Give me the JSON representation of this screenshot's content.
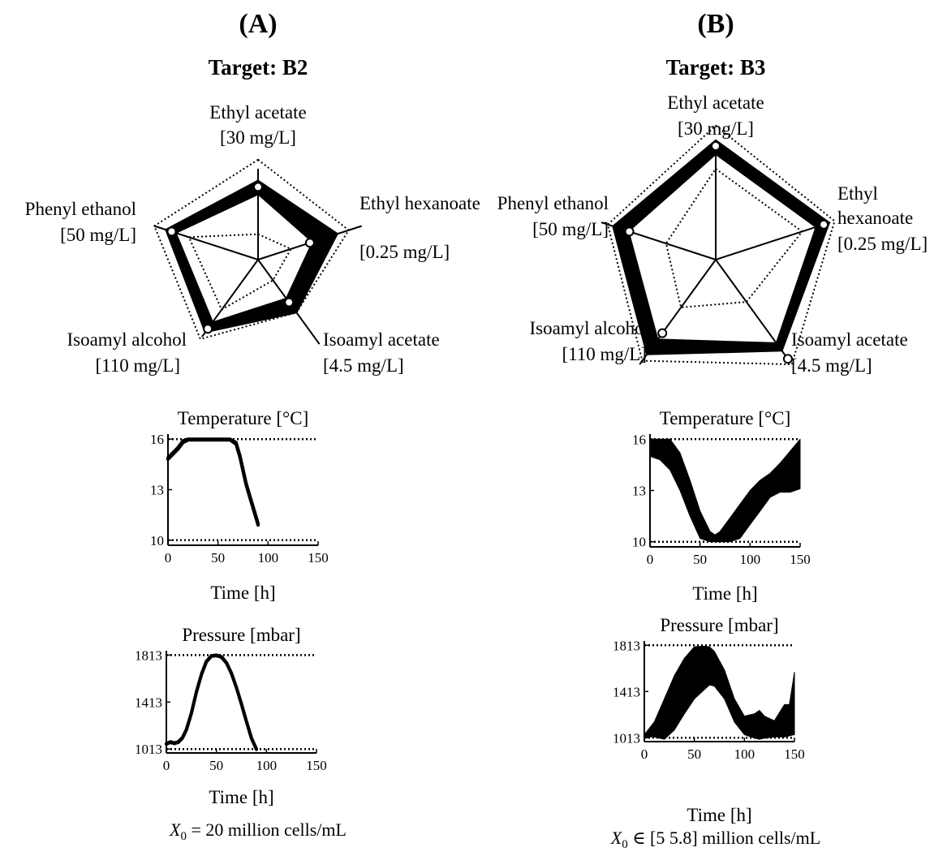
{
  "panels": [
    {
      "label": "(A)",
      "title": "Target: B2",
      "footer": {
        "symbol": "X",
        "subscript": "0",
        "text": " = 20 million cells/mL"
      }
    },
    {
      "label": "(B)",
      "title": "Target: B3",
      "footer": {
        "symbol": "X",
        "subscript": "0",
        "text": " ∈ [5   5.8] million cells/mL"
      }
    }
  ],
  "chart_data": [
    {
      "type": "radar",
      "panel": "A",
      "axes": [
        {
          "name": "Ethyl acetate",
          "unit": "[30 mg/L]"
        },
        {
          "name": "Ethyl hexanoate",
          "unit": "[0.25 mg/L]"
        },
        {
          "name": "Isoamyl acetate",
          "unit": "[4.5 mg/L]"
        },
        {
          "name": "Isoamyl alcohol",
          "unit": "[110 mg/L]"
        },
        {
          "name": "Phenyl ethanol",
          "unit": "[50 mg/L]"
        }
      ],
      "band_low": [
        0.71,
        0.62,
        0.52,
        0.84,
        0.94
      ],
      "band_high": [
        0.88,
        0.93,
        0.73,
        1.0,
        1.08
      ],
      "target": [
        0.8,
        0.6,
        0.58,
        0.94,
        1.0
      ],
      "dotted_inner": [
        0.28,
        0.38,
        0.28,
        0.68,
        0.8
      ],
      "dotted_outer": [
        1.1,
        1.05,
        0.72,
        1.08,
        1.2
      ]
    },
    {
      "type": "line",
      "panel": "A",
      "title": "Temperature [°C]",
      "xlabel": "Time [h]",
      "xticks": [
        0,
        50,
        100,
        150
      ],
      "yticks": [
        10,
        13,
        16
      ],
      "xlim": [
        0,
        150
      ],
      "ylim": [
        9.7,
        16.3
      ],
      "bounds": [
        10,
        16
      ],
      "x": [
        0,
        5,
        10,
        15,
        20,
        25,
        35,
        45,
        55,
        62,
        68,
        72,
        75,
        78,
        82,
        86,
        90
      ],
      "upper": [
        14.9,
        15.2,
        15.5,
        15.9,
        16,
        16,
        16,
        16,
        16,
        16,
        15.8,
        15,
        14.2,
        13.4,
        12.6,
        11.8,
        11
      ],
      "lower": [
        14.8,
        15.1,
        15.4,
        15.8,
        15.95,
        15.95,
        15.95,
        15.95,
        15.95,
        15.95,
        15.7,
        14.9,
        14.1,
        13.3,
        12.5,
        11.7,
        10.9
      ]
    },
    {
      "type": "line",
      "panel": "A",
      "title": "Pressure [mbar]",
      "xlabel": "Time [h]",
      "xticks": [
        0,
        50,
        100,
        150
      ],
      "yticks": [
        1013,
        1413,
        1813
      ],
      "xlim": [
        0,
        150
      ],
      "ylim": [
        980,
        1850
      ],
      "bounds": [
        1013,
        1813
      ],
      "x": [
        0,
        4,
        8,
        12,
        16,
        20,
        25,
        30,
        35,
        40,
        45,
        50,
        55,
        60,
        65,
        70,
        75,
        80,
        85,
        90
      ],
      "upper": [
        1060,
        1075,
        1065,
        1075,
        1110,
        1180,
        1320,
        1500,
        1650,
        1760,
        1808,
        1813,
        1800,
        1750,
        1660,
        1540,
        1400,
        1250,
        1110,
        1013
      ],
      "lower": [
        1055,
        1070,
        1060,
        1070,
        1105,
        1175,
        1315,
        1495,
        1645,
        1755,
        1803,
        1808,
        1795,
        1745,
        1655,
        1535,
        1395,
        1245,
        1105,
        1010
      ]
    },
    {
      "type": "radar",
      "panel": "B",
      "axes": [
        {
          "name": "Ethyl acetate",
          "unit": "[30 mg/L]"
        },
        {
          "name": "Ethyl hexanoate",
          "unit": "[0.25 mg/L]"
        },
        {
          "name": "Isoamyl acetate",
          "unit": "[4.5 mg/L]"
        },
        {
          "name": "Isoamyl alcohol",
          "unit": "[110 mg/L]"
        },
        {
          "name": "Phenyl ethanol",
          "unit": "[50 mg/L]"
        }
      ],
      "band_low": [
        0.92,
        0.92,
        0.9,
        0.86,
        0.8
      ],
      "band_high": [
        1.06,
        1.06,
        1.0,
        1.04,
        0.96
      ],
      "target": [
        1.0,
        1.0,
        1.08,
        0.8,
        0.8
      ],
      "dotted_inner": [
        0.8,
        0.8,
        0.46,
        0.52,
        0.46
      ],
      "dotted_outer": [
        1.18,
        1.1,
        1.14,
        1.1,
        1.0
      ]
    },
    {
      "type": "area",
      "panel": "B",
      "title": "Temperature [°C]",
      "xlabel": "Time [h]",
      "xticks": [
        0,
        50,
        100,
        150
      ],
      "yticks": [
        10,
        13,
        16
      ],
      "xlim": [
        0,
        150
      ],
      "ylim": [
        9.7,
        16.3
      ],
      "bounds": [
        10,
        16
      ],
      "x": [
        0,
        10,
        20,
        30,
        40,
        50,
        60,
        65,
        70,
        80,
        90,
        100,
        110,
        120,
        130,
        140,
        150
      ],
      "upper": [
        16,
        16,
        16,
        15.2,
        13.6,
        11.8,
        10.6,
        10.4,
        10.6,
        11.4,
        12.2,
        13,
        13.6,
        14,
        14.6,
        15.3,
        16
      ],
      "lower": [
        15,
        14.8,
        14.2,
        13,
        11.5,
        10.2,
        10,
        10,
        10,
        10,
        10.2,
        11,
        11.8,
        12.6,
        12.9,
        12.9,
        13.1
      ]
    },
    {
      "type": "area",
      "panel": "B",
      "title": "Pressure [mbar]",
      "xlabel": "Time [h]",
      "xticks": [
        0,
        50,
        100,
        150
      ],
      "yticks": [
        1013,
        1413,
        1813
      ],
      "xlim": [
        0,
        150
      ],
      "ylim": [
        980,
        1850
      ],
      "bounds": [
        1013,
        1813
      ],
      "x": [
        0,
        10,
        20,
        30,
        40,
        50,
        60,
        65,
        70,
        80,
        90,
        100,
        110,
        115,
        120,
        130,
        140,
        145,
        150
      ],
      "upper": [
        1040,
        1150,
        1350,
        1550,
        1700,
        1800,
        1805,
        1800,
        1760,
        1600,
        1350,
        1200,
        1220,
        1250,
        1200,
        1160,
        1300,
        1300,
        1580
      ],
      "lower": [
        1020,
        1020,
        1000,
        1080,
        1220,
        1350,
        1430,
        1470,
        1460,
        1350,
        1150,
        1040,
        1010,
        1000,
        1010,
        1020,
        1020,
        1030,
        1040
      ]
    }
  ]
}
